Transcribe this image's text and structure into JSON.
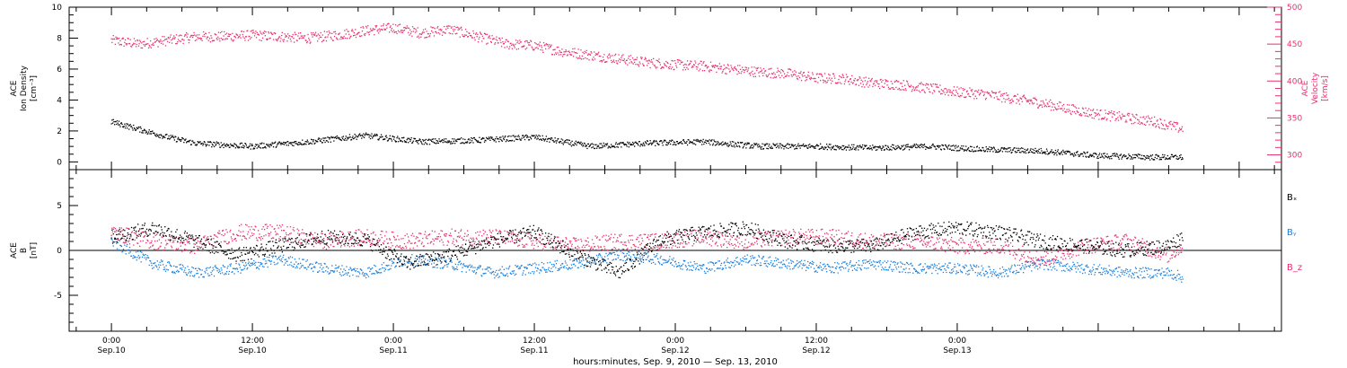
{
  "chart_data": [
    {
      "type": "scatter",
      "ylabel_lines": [
        "ACE",
        "Ion Density",
        "[cm⁻³]"
      ],
      "ylim": [
        -0.5,
        10
      ],
      "yticks": [
        0,
        2,
        4,
        6,
        8,
        10
      ],
      "y2label_lines": [
        "ACE",
        "Velocity",
        "[km/s]"
      ],
      "y2lim": [
        280,
        500
      ],
      "y2ticks": [
        300,
        350,
        400,
        450,
        500
      ],
      "series": [
        {
          "color": "#000000",
          "axis": "left",
          "x": [
            0,
            0.1,
            0.2,
            0.3,
            0.5,
            0.7,
            0.9,
            1.1,
            1.3,
            1.5,
            1.7,
            1.9,
            2.1,
            2.3,
            2.5,
            2.7,
            2.9,
            3.1,
            3.3,
            3.5,
            3.7,
            3.8
          ],
          "y": [
            2.6,
            2.1,
            1.6,
            1.2,
            1.0,
            1.3,
            1.7,
            1.3,
            1.4,
            1.6,
            1.0,
            1.2,
            1.3,
            1.0,
            1.0,
            0.9,
            1.0,
            0.8,
            0.7,
            0.4,
            0.3,
            0.3
          ]
        },
        {
          "color": "#e8306a",
          "axis": "right",
          "x": [
            0,
            0.1,
            0.2,
            0.3,
            0.4,
            0.5,
            0.6,
            0.7,
            0.8,
            0.9,
            1.0,
            1.1,
            1.2,
            1.3,
            1.4,
            1.5,
            1.6,
            1.7,
            1.8,
            1.9,
            2.0,
            2.1,
            2.2,
            2.3,
            2.4,
            2.5,
            2.6,
            2.7,
            2.8,
            2.9,
            3.0,
            3.1,
            3.2,
            3.3,
            3.4,
            3.5,
            3.6,
            3.7,
            3.8
          ],
          "y": [
            455,
            450,
            455,
            460,
            460,
            462,
            460,
            458,
            462,
            468,
            472,
            465,
            470,
            460,
            450,
            448,
            440,
            435,
            430,
            425,
            422,
            420,
            416,
            412,
            410,
            404,
            403,
            397,
            395,
            390,
            385,
            382,
            376,
            370,
            362,
            355,
            350,
            345,
            335
          ]
        }
      ]
    },
    {
      "type": "scatter",
      "ylabel_lines": [
        "ACE",
        "B",
        "[nT]"
      ],
      "ylim": [
        -9,
        9
      ],
      "yticks": [
        -5,
        0,
        5
      ],
      "series": [
        {
          "name": "Bₓ",
          "color": "#000000",
          "x": [
            0,
            0.15,
            0.3,
            0.45,
            0.6,
            0.75,
            0.9,
            1.05,
            1.2,
            1.35,
            1.5,
            1.65,
            1.8,
            1.95,
            2.1,
            2.25,
            2.4,
            2.55,
            2.7,
            2.85,
            3.0,
            3.15,
            3.3,
            3.45,
            3.6,
            3.75,
            3.8
          ],
          "y": [
            1.5,
            2.5,
            1.0,
            -0.5,
            0.5,
            1.5,
            1.2,
            -1.5,
            -0.5,
            1.0,
            2.0,
            -0.5,
            -2.5,
            1.2,
            2.0,
            2.5,
            1.0,
            0.5,
            0.5,
            2.0,
            2.5,
            2.0,
            1.0,
            0.5,
            0.0,
            0.5,
            1.5
          ]
        },
        {
          "name": "Bᵧ",
          "color": "#1a7fdd",
          "x": [
            0,
            0.15,
            0.3,
            0.45,
            0.6,
            0.75,
            0.9,
            1.05,
            1.2,
            1.35,
            1.5,
            1.65,
            1.8,
            1.95,
            2.1,
            2.25,
            2.4,
            2.55,
            2.7,
            2.85,
            3.0,
            3.15,
            3.3,
            3.45,
            3.6,
            3.75,
            3.8
          ],
          "y": [
            1.0,
            -1.5,
            -2.5,
            -2.0,
            -1.0,
            -2.0,
            -2.5,
            -1.0,
            -1.5,
            -2.5,
            -2.0,
            -1.5,
            -0.5,
            -1.0,
            -2.0,
            -1.0,
            -1.5,
            -2.0,
            -1.5,
            -2.0,
            -2.0,
            -2.5,
            -1.5,
            -2.0,
            -2.5,
            -2.5,
            -3.0
          ]
        },
        {
          "name": "B_z",
          "color": "#e8306a",
          "x": [
            0,
            0.15,
            0.3,
            0.45,
            0.6,
            0.75,
            0.9,
            1.05,
            1.2,
            1.35,
            1.5,
            1.65,
            1.8,
            1.95,
            2.1,
            2.25,
            2.4,
            2.55,
            2.7,
            2.85,
            3.0,
            3.15,
            3.3,
            3.45,
            3.6,
            3.75,
            3.8
          ],
          "y": [
            2.0,
            1.0,
            0.5,
            2.0,
            2.0,
            1.0,
            1.5,
            1.0,
            1.5,
            1.5,
            1.0,
            0.5,
            1.0,
            1.0,
            1.5,
            1.0,
            1.5,
            1.5,
            1.0,
            1.0,
            0.5,
            0.5,
            -1.0,
            0.5,
            1.0,
            -0.5,
            0.5
          ]
        }
      ]
    }
  ],
  "x_axis": {
    "xlim": [
      -0.15,
      4.15
    ],
    "ticks": [
      {
        "x": 0,
        "time": "0:00",
        "date": "Sep.10"
      },
      {
        "x": 0.5,
        "time": "12:00",
        "date": "Sep.10"
      },
      {
        "x": 1,
        "time": "0:00",
        "date": "Sep.11"
      },
      {
        "x": 1.5,
        "time": "12:00",
        "date": "Sep.11"
      },
      {
        "x": 2,
        "time": "0:00",
        "date": "Sep.12"
      },
      {
        "x": 2.5,
        "time": "12:00",
        "date": "Sep.12"
      },
      {
        "x": 3,
        "time": "0:00",
        "date": "Sep.13"
      }
    ],
    "xlabel": "hours:minutes, Sep.  9, 2010 — Sep. 13, 2010"
  },
  "colors": {
    "density": "#000000",
    "velocity": "#e8306a",
    "bx": "#000000",
    "by": "#1a7fdd",
    "bz": "#e8306a"
  }
}
